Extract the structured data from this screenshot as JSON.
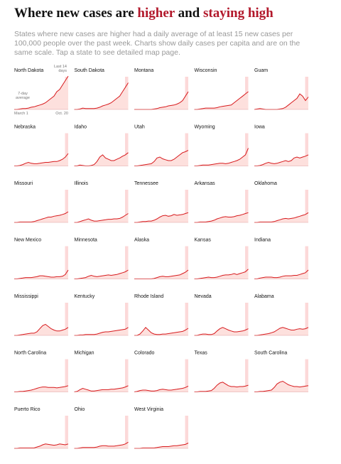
{
  "header": {
    "title_parts": [
      {
        "text": "Where new cases are ",
        "color": "#121212"
      },
      {
        "text": "higher",
        "color": "#b2182b"
      },
      {
        "text": " and ",
        "color": "#121212"
      },
      {
        "text": "staying high",
        "color": "#b2182b"
      }
    ],
    "subtitle": "States where new cases are higher had a daily average of at least 15 new cases per 100,000 people over the past week. Charts show daily cases per capita and are on the same scale. Tap a state to see detailed map page."
  },
  "chart_data": {
    "type": "line",
    "ylim": [
      0,
      80
    ],
    "line_color": "#d7191c",
    "area_color": "#fde0dd",
    "band_color": "#f9b4b4",
    "annotations": {
      "last_14_days": [
        "Last 14",
        "days"
      ],
      "seven_day_average": [
        "7-day",
        "average"
      ],
      "start_date": "March 1",
      "end_date": "Oct. 20"
    },
    "series": [
      {
        "name": "North Dakota",
        "values": [
          0,
          0,
          1,
          2,
          2,
          3,
          5,
          6,
          8,
          10,
          12,
          15,
          20,
          25,
          30,
          40,
          45,
          55,
          65,
          75
        ]
      },
      {
        "name": "South Dakota",
        "values": [
          0,
          0,
          1,
          3,
          2,
          2,
          2,
          2,
          3,
          5,
          8,
          10,
          12,
          15,
          20,
          25,
          30,
          40,
          50,
          60
        ]
      },
      {
        "name": "Montana",
        "values": [
          0,
          0,
          0,
          0,
          0,
          0,
          0,
          1,
          2,
          4,
          5,
          6,
          8,
          9,
          10,
          12,
          15,
          20,
          30,
          40
        ]
      },
      {
        "name": "Wisconsin",
        "values": [
          0,
          0,
          1,
          2,
          3,
          3,
          3,
          3,
          4,
          6,
          7,
          8,
          9,
          10,
          15,
          20,
          25,
          30,
          35,
          40
        ]
      },
      {
        "name": "Guam",
        "values": [
          0,
          1,
          2,
          1,
          0,
          0,
          0,
          0,
          0,
          1,
          2,
          5,
          10,
          15,
          20,
          25,
          35,
          30,
          20,
          28
        ]
      },
      {
        "name": "Nebraska",
        "values": [
          0,
          0,
          1,
          3,
          6,
          8,
          6,
          5,
          5,
          6,
          7,
          8,
          8,
          9,
          10,
          10,
          12,
          15,
          20,
          28
        ]
      },
      {
        "name": "Idaho",
        "values": [
          0,
          0,
          2,
          1,
          0,
          0,
          1,
          3,
          10,
          20,
          25,
          18,
          15,
          12,
          12,
          15,
          18,
          22,
          25,
          30
        ]
      },
      {
        "name": "Utah",
        "values": [
          0,
          0,
          1,
          2,
          3,
          4,
          5,
          10,
          18,
          20,
          16,
          14,
          12,
          12,
          15,
          20,
          25,
          30,
          32,
          35
        ]
      },
      {
        "name": "Wyoming",
        "values": [
          0,
          0,
          1,
          2,
          2,
          2,
          3,
          4,
          5,
          6,
          6,
          5,
          6,
          8,
          10,
          12,
          15,
          20,
          25,
          40
        ]
      },
      {
        "name": "Iowa",
        "values": [
          0,
          0,
          1,
          3,
          6,
          8,
          6,
          5,
          6,
          8,
          10,
          12,
          10,
          12,
          18,
          20,
          18,
          20,
          22,
          25
        ]
      },
      {
        "name": "Missouri",
        "values": [
          0,
          0,
          1,
          1,
          1,
          1,
          1,
          2,
          4,
          6,
          8,
          10,
          12,
          12,
          14,
          15,
          16,
          18,
          20,
          24
        ]
      },
      {
        "name": "Illinois",
        "values": [
          0,
          0,
          2,
          4,
          6,
          8,
          5,
          3,
          3,
          4,
          5,
          6,
          7,
          7,
          8,
          8,
          9,
          12,
          16,
          20
        ]
      },
      {
        "name": "Tennessee",
        "values": [
          0,
          0,
          1,
          2,
          2,
          3,
          3,
          5,
          8,
          12,
          15,
          16,
          14,
          15,
          18,
          16,
          17,
          18,
          20,
          22
        ]
      },
      {
        "name": "Arkansas",
        "values": [
          0,
          0,
          1,
          1,
          1,
          2,
          3,
          5,
          8,
          10,
          12,
          13,
          12,
          12,
          13,
          15,
          16,
          18,
          20,
          22
        ]
      },
      {
        "name": "Oklahoma",
        "values": [
          0,
          0,
          1,
          1,
          1,
          1,
          1,
          2,
          4,
          6,
          8,
          9,
          8,
          9,
          10,
          12,
          14,
          16,
          18,
          22
        ]
      },
      {
        "name": "New Mexico",
        "values": [
          0,
          0,
          1,
          2,
          3,
          3,
          3,
          4,
          5,
          7,
          7,
          6,
          5,
          4,
          4,
          5,
          5,
          6,
          10,
          20
        ]
      },
      {
        "name": "Minnesota",
        "values": [
          0,
          0,
          1,
          2,
          3,
          6,
          8,
          6,
          5,
          6,
          7,
          8,
          9,
          8,
          9,
          10,
          12,
          14,
          16,
          20
        ]
      },
      {
        "name": "Alaska",
        "values": [
          0,
          0,
          0,
          0,
          0,
          0,
          0,
          1,
          3,
          5,
          6,
          5,
          5,
          6,
          7,
          8,
          9,
          12,
          15,
          20
        ]
      },
      {
        "name": "Kansas",
        "values": [
          0,
          0,
          1,
          2,
          3,
          4,
          3,
          3,
          4,
          6,
          8,
          9,
          9,
          10,
          12,
          10,
          12,
          14,
          16,
          22
        ]
      },
      {
        "name": "Indiana",
        "values": [
          0,
          0,
          2,
          3,
          4,
          4,
          4,
          3,
          3,
          4,
          6,
          7,
          7,
          7,
          8,
          8,
          10,
          12,
          14,
          20
        ]
      },
      {
        "name": "Mississippi",
        "values": [
          0,
          0,
          1,
          2,
          3,
          4,
          5,
          5,
          8,
          15,
          22,
          25,
          20,
          15,
          12,
          10,
          10,
          12,
          14,
          18
        ]
      },
      {
        "name": "Kentucky",
        "values": [
          0,
          0,
          1,
          1,
          2,
          2,
          2,
          2,
          3,
          5,
          7,
          8,
          8,
          9,
          10,
          11,
          12,
          13,
          14,
          18
        ]
      },
      {
        "name": "Rhode Island",
        "values": [
          0,
          0,
          3,
          10,
          18,
          12,
          6,
          3,
          2,
          2,
          3,
          3,
          4,
          5,
          6,
          7,
          8,
          9,
          12,
          16
        ]
      },
      {
        "name": "Nevada",
        "values": [
          0,
          0,
          2,
          3,
          3,
          2,
          2,
          4,
          10,
          15,
          18,
          15,
          12,
          10,
          8,
          8,
          9,
          10,
          12,
          15
        ]
      },
      {
        "name": "Alabama",
        "values": [
          0,
          0,
          1,
          2,
          3,
          4,
          6,
          8,
          12,
          16,
          18,
          16,
          14,
          12,
          12,
          14,
          15,
          14,
          15,
          18
        ]
      },
      {
        "name": "North Carolina",
        "values": [
          0,
          0,
          1,
          1,
          2,
          3,
          4,
          6,
          8,
          10,
          11,
          11,
          10,
          10,
          10,
          9,
          10,
          11,
          12,
          14
        ]
      },
      {
        "name": "Michigan",
        "values": [
          0,
          1,
          5,
          8,
          6,
          4,
          2,
          2,
          3,
          4,
          5,
          5,
          5,
          6,
          6,
          7,
          8,
          9,
          11,
          14
        ]
      },
      {
        "name": "Colorado",
        "values": [
          0,
          1,
          3,
          4,
          4,
          3,
          2,
          2,
          3,
          5,
          6,
          5,
          4,
          4,
          5,
          6,
          7,
          8,
          10,
          13
        ]
      },
      {
        "name": "Texas",
        "values": [
          0,
          0,
          1,
          1,
          1,
          2,
          3,
          8,
          15,
          20,
          22,
          18,
          14,
          12,
          12,
          11,
          12,
          12,
          13,
          15
        ]
      },
      {
        "name": "South Carolina",
        "values": [
          0,
          0,
          1,
          1,
          2,
          3,
          4,
          10,
          18,
          22,
          24,
          20,
          16,
          14,
          12,
          12,
          11,
          12,
          13,
          14
        ]
      },
      {
        "name": "Puerto Rico",
        "values": [
          0,
          0,
          1,
          1,
          1,
          1,
          1,
          1,
          3,
          5,
          8,
          10,
          9,
          8,
          7,
          8,
          10,
          9,
          8,
          10
        ]
      },
      {
        "name": "Ohio",
        "values": [
          0,
          0,
          1,
          2,
          2,
          2,
          2,
          2,
          3,
          5,
          6,
          6,
          5,
          5,
          5,
          6,
          7,
          8,
          10,
          14
        ]
      },
      {
        "name": "West Virginia",
        "values": [
          0,
          0,
          0,
          1,
          1,
          1,
          1,
          1,
          2,
          3,
          4,
          4,
          4,
          5,
          6,
          6,
          7,
          8,
          9,
          12
        ]
      }
    ]
  }
}
